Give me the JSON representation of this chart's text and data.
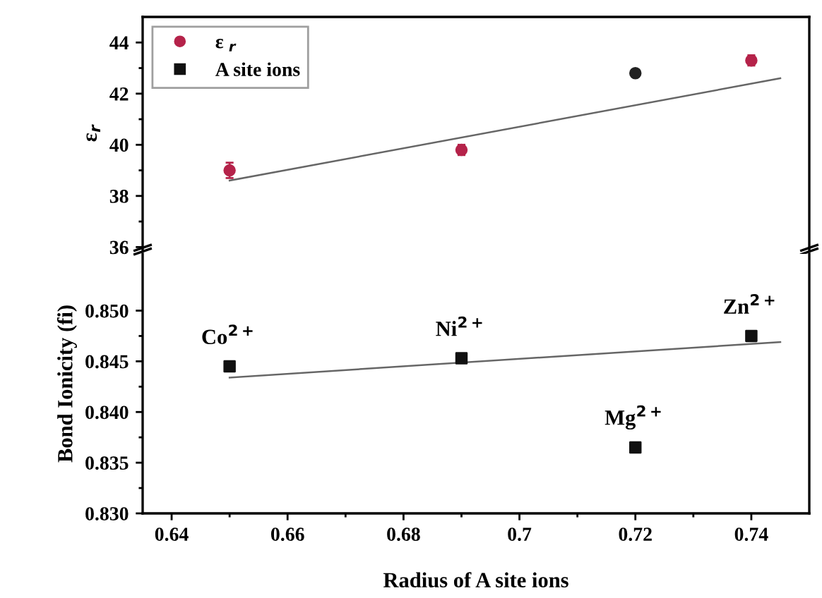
{
  "chart_data": [
    {
      "type": "scatter",
      "ylabel": "ε$_{r}$",
      "xlim": [
        0.635,
        0.75
      ],
      "xticks": [
        0.64,
        0.66,
        0.68,
        0.7,
        0.72,
        0.74
      ],
      "ylim": [
        35.9,
        45
      ],
      "yticks": [
        36,
        38,
        40,
        42,
        44
      ],
      "tick_labels": "y",
      "legend": "top left",
      "marker": "circle",
      "grid": false,
      "series": [
        {
          "name": "ε $_{r}$",
          "color": "#b5234a",
          "colors": [
            "#b5234a",
            "#b5234a",
            "#222222",
            "#b5234a"
          ],
          "x": [
            0.65,
            0.69,
            0.72,
            0.74
          ],
          "values": [
            39.0,
            39.8,
            42.8,
            43.3
          ],
          "errors": [
            0.3,
            0.2,
            null,
            0.2
          ]
        },
        {
          "type": "line",
          "marker": "none",
          "color": "#666666",
          "x": [
            0.65,
            0.745
          ],
          "values": [
            38.6,
            42.6
          ]
        }
      ]
    },
    {
      "type": "scatter",
      "ylabel": "Bond Ionicity (fi)",
      "xlabel": "Radius of A site ions",
      "xlim": [
        0.635,
        0.75
      ],
      "xticks": [
        0.64,
        0.66,
        0.68,
        0.7,
        0.72,
        0.74
      ],
      "ylim": [
        0.83,
        0.8556
      ],
      "yticks": [
        {
          "value": 0.83,
          "label": "0.830"
        },
        {
          "value": 0.835,
          "label": "0.835"
        },
        {
          "value": 0.84,
          "label": "0.840"
        },
        {
          "value": 0.845,
          "label": "0.845"
        },
        {
          "value": 0.85,
          "label": "0.850"
        }
      ],
      "marker": "square",
      "grid": false,
      "series": [
        {
          "name": "A site ions",
          "color": "#111111",
          "x": [
            0.65,
            0.69,
            0.72,
            0.74
          ],
          "values": [
            0.8445,
            0.8453,
            0.8365,
            0.8475
          ]
        },
        {
          "type": "line",
          "marker": "none",
          "color": "#666666",
          "x": [
            0.65,
            0.745
          ],
          "values": [
            0.8434,
            0.8469
          ]
        }
      ],
      "annotations": [
        {
          "text": "Co$^{2+}$",
          "x": 0.65,
          "y": 0.8445
        },
        {
          "text": "Ni$^{2+}$",
          "x": 0.69,
          "y": 0.8453
        },
        {
          "text": "Mg$^{2+}$",
          "x": 0.72,
          "y": 0.8365
        },
        {
          "text": "Zn$^{2+}$",
          "x": 0.74,
          "y": 0.8475
        }
      ]
    }
  ]
}
